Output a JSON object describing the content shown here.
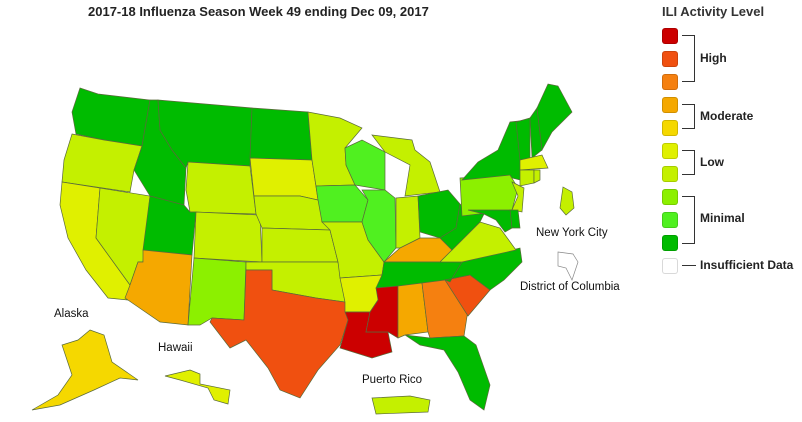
{
  "title": "2017-18 Influenza Season Week 49 ending Dec 09, 2017",
  "labels": {
    "alaska": "Alaska",
    "hawaii": "Hawaii",
    "puerto_rico": "Puerto Rico",
    "nyc": "New York City",
    "dc": "District of Columbia"
  },
  "legend": {
    "title": "ILI Activity Level",
    "levels": {
      "10": "#cc0000",
      "9": "#f05010",
      "8": "#f58010",
      "7": "#f5a800",
      "6": "#f5d800",
      "5": "#e0f000",
      "4": "#c4f000",
      "3": "#8cf000",
      "2": "#50f020",
      "1": "#00bb00",
      "insufficient": "#ffffff"
    },
    "groups": {
      "high": "High",
      "moderate": "Moderate",
      "low": "Low",
      "minimal": "Minimal",
      "insufficient": "Insufficient Data"
    }
  },
  "activity_levels": {
    "WA": 1,
    "OR": 4,
    "CA": 5,
    "NV": 4,
    "ID": 1,
    "MT": 1,
    "WY": 4,
    "UT": 1,
    "CO": 4,
    "AZ": 7,
    "NM": 3,
    "ND": 1,
    "SD": 5,
    "NE": 4,
    "KS": 4,
    "OK": 4,
    "TX": 9,
    "MN": 4,
    "IA": 2,
    "MO": 4,
    "AR": 5,
    "LA": 10,
    "WI": 2,
    "IL": 2,
    "MI": 4,
    "IN": 4,
    "OH": 1,
    "KY": 7,
    "TN": 1,
    "MS": 10,
    "AL": 7,
    "GA": 8,
    "FL": 1,
    "SC": 9,
    "NC": 1,
    "VA": 4,
    "WV": 1,
    "PA": 3,
    "NY": 1,
    "NJ": 4,
    "DE": 1,
    "MD": 1,
    "VT": 1,
    "NH": 1,
    "ME": 1,
    "MA": 5,
    "CT": 4,
    "RI": 4,
    "AK": 6,
    "HI": 5,
    "PR": 4,
    "NYC": 4,
    "DC": "insufficient"
  }
}
